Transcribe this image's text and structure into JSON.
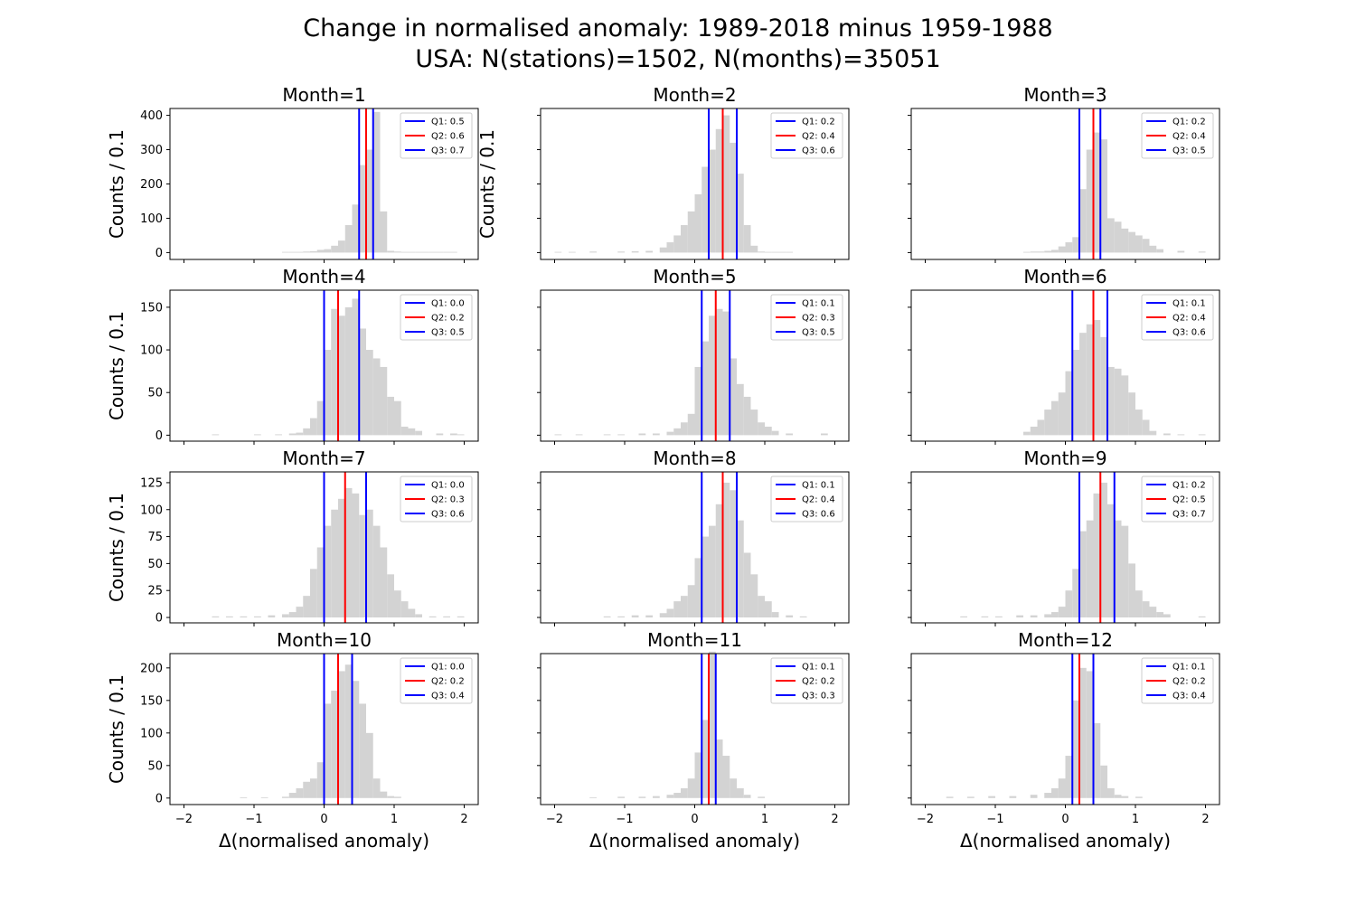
{
  "figure": {
    "title_line1": "Change in normalised anomaly: 1989-2018 minus 1959-1988",
    "title_line2": "USA: N(stations)=1502, N(months)=35051"
  },
  "colors": {
    "histogram": "#d3d3d3",
    "q1_q3": "#0000ff",
    "q2": "#ff0000"
  },
  "chart_data": [
    {
      "type": "bar",
      "title": "Month=1",
      "xlabel": "",
      "ylabel": "Counts / 0.1",
      "xlim": [
        -2.2,
        2.2
      ],
      "ylim": [
        -20,
        420
      ],
      "yticks": [
        0,
        100,
        200,
        300,
        400
      ],
      "xticks": [
        -2,
        -1,
        0,
        1,
        2
      ],
      "bin_width": 0.1,
      "bin_starts": [
        -0.6,
        -0.5,
        -0.4,
        -0.3,
        -0.2,
        -0.1,
        0.0,
        0.1,
        0.2,
        0.3,
        0.4,
        0.5,
        0.6,
        0.7,
        0.8,
        0.9,
        1.0,
        1.1,
        1.2,
        1.3,
        1.4,
        1.5,
        1.6,
        1.7,
        1.8
      ],
      "values": [
        2,
        2,
        2,
        3,
        4,
        8,
        10,
        20,
        35,
        80,
        140,
        255,
        300,
        410,
        120,
        5,
        3,
        2,
        2,
        2,
        2,
        2,
        2,
        2,
        2
      ],
      "quartiles": [
        {
          "label": "Q1: 0.5",
          "value": 0.5
        },
        {
          "label": "Q2: 0.6",
          "value": 0.6
        },
        {
          "label": "Q3: 0.7",
          "value": 0.7
        }
      ]
    },
    {
      "type": "bar",
      "title": "Month=2",
      "xlabel": "",
      "ylabel": "Counts / 0.1",
      "xlim": [
        -2.2,
        2.2
      ],
      "ylim": [
        -20,
        420
      ],
      "yticks": [
        0,
        100,
        200,
        300,
        400
      ],
      "xticks": [
        -2,
        -1,
        0,
        1,
        2
      ],
      "bin_width": 0.1,
      "bin_starts": [
        -2.0,
        -1.8,
        -1.5,
        -1.1,
        -0.9,
        -0.7,
        -0.5,
        -0.4,
        -0.3,
        -0.2,
        -0.1,
        0.0,
        0.1,
        0.2,
        0.3,
        0.4,
        0.5,
        0.6,
        0.7,
        0.8,
        0.9,
        1.0,
        1.1,
        1.2,
        1.3
      ],
      "values": [
        2,
        2,
        3,
        3,
        4,
        5,
        15,
        30,
        50,
        80,
        120,
        170,
        250,
        300,
        360,
        400,
        320,
        230,
        80,
        20,
        3,
        2,
        2,
        2,
        2
      ],
      "quartiles": [
        {
          "label": "Q1: 0.2",
          "value": 0.2
        },
        {
          "label": "Q2: 0.4",
          "value": 0.4
        },
        {
          "label": "Q3: 0.6",
          "value": 0.6
        }
      ]
    },
    {
      "type": "bar",
      "title": "Month=3",
      "xlabel": "",
      "ylabel": "",
      "xlim": [
        -2.2,
        2.2
      ],
      "ylim": [
        -20,
        420
      ],
      "yticks": [
        0,
        100,
        200,
        300,
        400
      ],
      "xticks": [
        -2,
        -1,
        0,
        1,
        2
      ],
      "bin_width": 0.1,
      "bin_starts": [
        -0.6,
        -0.5,
        -0.4,
        -0.3,
        -0.2,
        -0.1,
        0.0,
        0.1,
        0.2,
        0.3,
        0.4,
        0.5,
        0.6,
        0.7,
        0.8,
        0.9,
        1.0,
        1.1,
        1.2,
        1.3,
        1.6,
        1.9
      ],
      "values": [
        2,
        3,
        3,
        5,
        8,
        18,
        30,
        45,
        185,
        300,
        350,
        330,
        100,
        90,
        70,
        60,
        50,
        40,
        20,
        10,
        5,
        3
      ],
      "quartiles": [
        {
          "label": "Q1: 0.2",
          "value": 0.2
        },
        {
          "label": "Q2: 0.4",
          "value": 0.4
        },
        {
          "label": "Q3: 0.5",
          "value": 0.5
        }
      ]
    },
    {
      "type": "bar",
      "title": "Month=4",
      "xlabel": "",
      "ylabel": "Counts / 0.1",
      "xlim": [
        -2.2,
        2.2
      ],
      "ylim": [
        -7,
        170
      ],
      "yticks": [
        0,
        50,
        100,
        150
      ],
      "xticks": [
        -2,
        -1,
        0,
        1,
        2
      ],
      "bin_width": 0.1,
      "bin_starts": [
        -1.6,
        -1.0,
        -0.7,
        -0.5,
        -0.4,
        -0.3,
        -0.2,
        -0.1,
        0.0,
        0.1,
        0.2,
        0.3,
        0.4,
        0.5,
        0.6,
        0.7,
        0.8,
        0.9,
        1.0,
        1.1,
        1.2,
        1.3,
        1.6,
        1.8,
        1.9
      ],
      "values": [
        1,
        1,
        1,
        2,
        3,
        8,
        20,
        40,
        100,
        148,
        140,
        150,
        160,
        125,
        100,
        90,
        80,
        45,
        40,
        10,
        8,
        5,
        2,
        2,
        1
      ],
      "quartiles": [
        {
          "label": "Q1: 0.0",
          "value": 0.0
        },
        {
          "label": "Q2: 0.2",
          "value": 0.2
        },
        {
          "label": "Q3: 0.5",
          "value": 0.5
        }
      ]
    },
    {
      "type": "bar",
      "title": "Month=5",
      "xlabel": "",
      "ylabel": "",
      "xlim": [
        -2.2,
        2.2
      ],
      "ylim": [
        -7,
        170
      ],
      "yticks": [
        0,
        50,
        100,
        150
      ],
      "xticks": [
        -2,
        -1,
        0,
        1,
        2
      ],
      "bin_width": 0.1,
      "bin_starts": [
        -2.0,
        -1.7,
        -1.3,
        -1.1,
        -0.8,
        -0.6,
        -0.4,
        -0.3,
        -0.2,
        -0.1,
        0.0,
        0.1,
        0.2,
        0.3,
        0.4,
        0.5,
        0.6,
        0.7,
        0.8,
        0.9,
        1.0,
        1.1,
        1.3,
        1.8
      ],
      "values": [
        1,
        1,
        1,
        1,
        2,
        2,
        4,
        8,
        15,
        25,
        80,
        110,
        140,
        148,
        145,
        90,
        60,
        45,
        30,
        15,
        10,
        5,
        2,
        2
      ],
      "quartiles": [
        {
          "label": "Q1: 0.1",
          "value": 0.1
        },
        {
          "label": "Q2: 0.3",
          "value": 0.3
        },
        {
          "label": "Q3: 0.5",
          "value": 0.5
        }
      ]
    },
    {
      "type": "bar",
      "title": "Month=6",
      "xlabel": "",
      "ylabel": "",
      "xlim": [
        -2.2,
        2.2
      ],
      "ylim": [
        -7,
        170
      ],
      "yticks": [
        0,
        50,
        100,
        150
      ],
      "xticks": [
        -2,
        -1,
        0,
        1,
        2
      ],
      "bin_width": 0.1,
      "bin_starts": [
        -0.6,
        -0.5,
        -0.4,
        -0.3,
        -0.2,
        -0.1,
        0.0,
        0.1,
        0.2,
        0.3,
        0.4,
        0.5,
        0.6,
        0.7,
        0.8,
        0.9,
        1.0,
        1.1,
        1.2,
        1.4,
        1.6,
        1.9
      ],
      "values": [
        4,
        10,
        18,
        30,
        40,
        50,
        75,
        100,
        120,
        130,
        135,
        115,
        80,
        78,
        70,
        50,
        30,
        18,
        5,
        2,
        1,
        1
      ],
      "quartiles": [
        {
          "label": "Q1: 0.1",
          "value": 0.1
        },
        {
          "label": "Q2: 0.4",
          "value": 0.4
        },
        {
          "label": "Q3: 0.6",
          "value": 0.6
        }
      ]
    },
    {
      "type": "bar",
      "title": "Month=7",
      "xlabel": "",
      "ylabel": "Counts / 0.1",
      "xlim": [
        -2.2,
        2.2
      ],
      "ylim": [
        -5,
        135
      ],
      "yticks": [
        0,
        25,
        50,
        75,
        100,
        125
      ],
      "xticks": [
        -2,
        -1,
        0,
        1,
        2
      ],
      "bin_width": 0.1,
      "bin_starts": [
        -1.6,
        -1.4,
        -1.2,
        -1.0,
        -0.8,
        -0.6,
        -0.5,
        -0.4,
        -0.3,
        -0.2,
        -0.1,
        0.0,
        0.1,
        0.2,
        0.3,
        0.4,
        0.5,
        0.6,
        0.7,
        0.8,
        0.9,
        1.0,
        1.1,
        1.2,
        1.3,
        1.5,
        1.7,
        1.9
      ],
      "values": [
        1,
        1,
        1,
        1,
        2,
        3,
        5,
        10,
        20,
        45,
        65,
        85,
        100,
        110,
        120,
        115,
        95,
        100,
        85,
        65,
        40,
        25,
        15,
        8,
        3,
        1,
        1,
        1
      ],
      "quartiles": [
        {
          "label": "Q1: 0.0",
          "value": 0.0
        },
        {
          "label": "Q2: 0.3",
          "value": 0.3
        },
        {
          "label": "Q3: 0.6",
          "value": 0.6
        }
      ]
    },
    {
      "type": "bar",
      "title": "Month=8",
      "xlabel": "",
      "ylabel": "",
      "xlim": [
        -2.2,
        2.2
      ],
      "ylim": [
        -5,
        135
      ],
      "yticks": [
        0,
        25,
        50,
        75,
        100,
        125
      ],
      "xticks": [
        -2,
        -1,
        0,
        1,
        2
      ],
      "bin_width": 0.1,
      "bin_starts": [
        -1.3,
        -1.1,
        -0.9,
        -0.7,
        -0.5,
        -0.4,
        -0.3,
        -0.2,
        -0.1,
        0.0,
        0.1,
        0.2,
        0.3,
        0.4,
        0.5,
        0.6,
        0.7,
        0.8,
        0.9,
        1.0,
        1.1,
        1.3,
        1.5
      ],
      "values": [
        1,
        1,
        2,
        2,
        4,
        8,
        15,
        20,
        30,
        55,
        75,
        85,
        105,
        125,
        118,
        90,
        60,
        40,
        20,
        15,
        5,
        2,
        1
      ],
      "quartiles": [
        {
          "label": "Q1: 0.1",
          "value": 0.1
        },
        {
          "label": "Q2: 0.4",
          "value": 0.4
        },
        {
          "label": "Q3: 0.6",
          "value": 0.6
        }
      ]
    },
    {
      "type": "bar",
      "title": "Month=9",
      "xlabel": "",
      "ylabel": "",
      "xlim": [
        -2.2,
        2.2
      ],
      "ylim": [
        -5,
        135
      ],
      "yticks": [
        0,
        25,
        50,
        75,
        100,
        125
      ],
      "xticks": [
        -2,
        -1,
        0,
        1,
        2
      ],
      "bin_width": 0.1,
      "bin_starts": [
        -1.5,
        -1.2,
        -1.0,
        -0.7,
        -0.5,
        -0.3,
        -0.2,
        -0.1,
        0.0,
        0.1,
        0.2,
        0.3,
        0.4,
        0.5,
        0.6,
        0.7,
        0.8,
        0.9,
        1.0,
        1.1,
        1.2,
        1.3,
        1.4,
        1.9
      ],
      "values": [
        1,
        1,
        1,
        2,
        2,
        3,
        5,
        10,
        25,
        45,
        80,
        90,
        115,
        125,
        105,
        90,
        85,
        50,
        25,
        15,
        10,
        5,
        3,
        1
      ],
      "quartiles": [
        {
          "label": "Q1: 0.2",
          "value": 0.2
        },
        {
          "label": "Q2: 0.5",
          "value": 0.5
        },
        {
          "label": "Q3: 0.7",
          "value": 0.7
        }
      ]
    },
    {
      "type": "bar",
      "title": "Month=10",
      "xlabel": "Δ(normalised anomaly)",
      "ylabel": "Counts / 0.1",
      "xlim": [
        -2.2,
        2.2
      ],
      "ylim": [
        -10,
        222
      ],
      "yticks": [
        0,
        50,
        100,
        150,
        200
      ],
      "xticks": [
        -2,
        -1,
        0,
        1,
        2
      ],
      "bin_width": 0.1,
      "bin_starts": [
        -1.2,
        -0.9,
        -0.6,
        -0.5,
        -0.4,
        -0.3,
        -0.2,
        -0.1,
        0.0,
        0.1,
        0.2,
        0.3,
        0.4,
        0.5,
        0.6,
        0.7,
        0.8,
        0.9,
        1.0
      ],
      "values": [
        1,
        1,
        2,
        8,
        15,
        25,
        30,
        55,
        145,
        165,
        195,
        205,
        180,
        145,
        100,
        30,
        10,
        3,
        2
      ],
      "quartiles": [
        {
          "label": "Q1: 0.0",
          "value": 0.0
        },
        {
          "label": "Q2: 0.2",
          "value": 0.2
        },
        {
          "label": "Q3: 0.4",
          "value": 0.4
        }
      ]
    },
    {
      "type": "bar",
      "title": "Month=11",
      "xlabel": "Δ(normalised anomaly)",
      "ylabel": "",
      "xlim": [
        -2.2,
        2.2
      ],
      "ylim": [
        -10,
        222
      ],
      "yticks": [
        0,
        50,
        100,
        150,
        200
      ],
      "xticks": [
        -2,
        -1,
        0,
        1,
        2
      ],
      "bin_width": 0.1,
      "bin_starts": [
        -1.5,
        -1.1,
        -0.8,
        -0.6,
        -0.4,
        -0.3,
        -0.2,
        -0.1,
        0.0,
        0.1,
        0.2,
        0.3,
        0.4,
        0.5,
        0.6,
        0.7,
        0.9
      ],
      "values": [
        1,
        2,
        2,
        3,
        5,
        8,
        15,
        30,
        70,
        120,
        225,
        90,
        65,
        30,
        15,
        5,
        2
      ],
      "quartiles": [
        {
          "label": "Q1: 0.1",
          "value": 0.1
        },
        {
          "label": "Q2: 0.2",
          "value": 0.2
        },
        {
          "label": "Q3: 0.3",
          "value": 0.3
        }
      ]
    },
    {
      "type": "bar",
      "title": "Month=12",
      "xlabel": "Δ(normalised anomaly)",
      "ylabel": "",
      "xlim": [
        -2.2,
        2.2
      ],
      "ylim": [
        -10,
        222
      ],
      "yticks": [
        0,
        50,
        100,
        150,
        200
      ],
      "xticks": [
        -2,
        -1,
        0,
        1,
        2
      ],
      "bin_width": 0.1,
      "bin_starts": [
        -1.7,
        -1.4,
        -1.1,
        -0.8,
        -0.5,
        -0.3,
        -0.2,
        -0.1,
        0.0,
        0.1,
        0.2,
        0.3,
        0.4,
        0.5,
        0.6,
        0.7,
        0.8,
        1.0
      ],
      "values": [
        2,
        2,
        3,
        3,
        5,
        8,
        15,
        30,
        65,
        150,
        200,
        195,
        115,
        50,
        15,
        5,
        3,
        2
      ],
      "quartiles": [
        {
          "label": "Q1: 0.1",
          "value": 0.1
        },
        {
          "label": "Q2: 0.2",
          "value": 0.2
        },
        {
          "label": "Q3: 0.4",
          "value": 0.4
        }
      ]
    }
  ]
}
